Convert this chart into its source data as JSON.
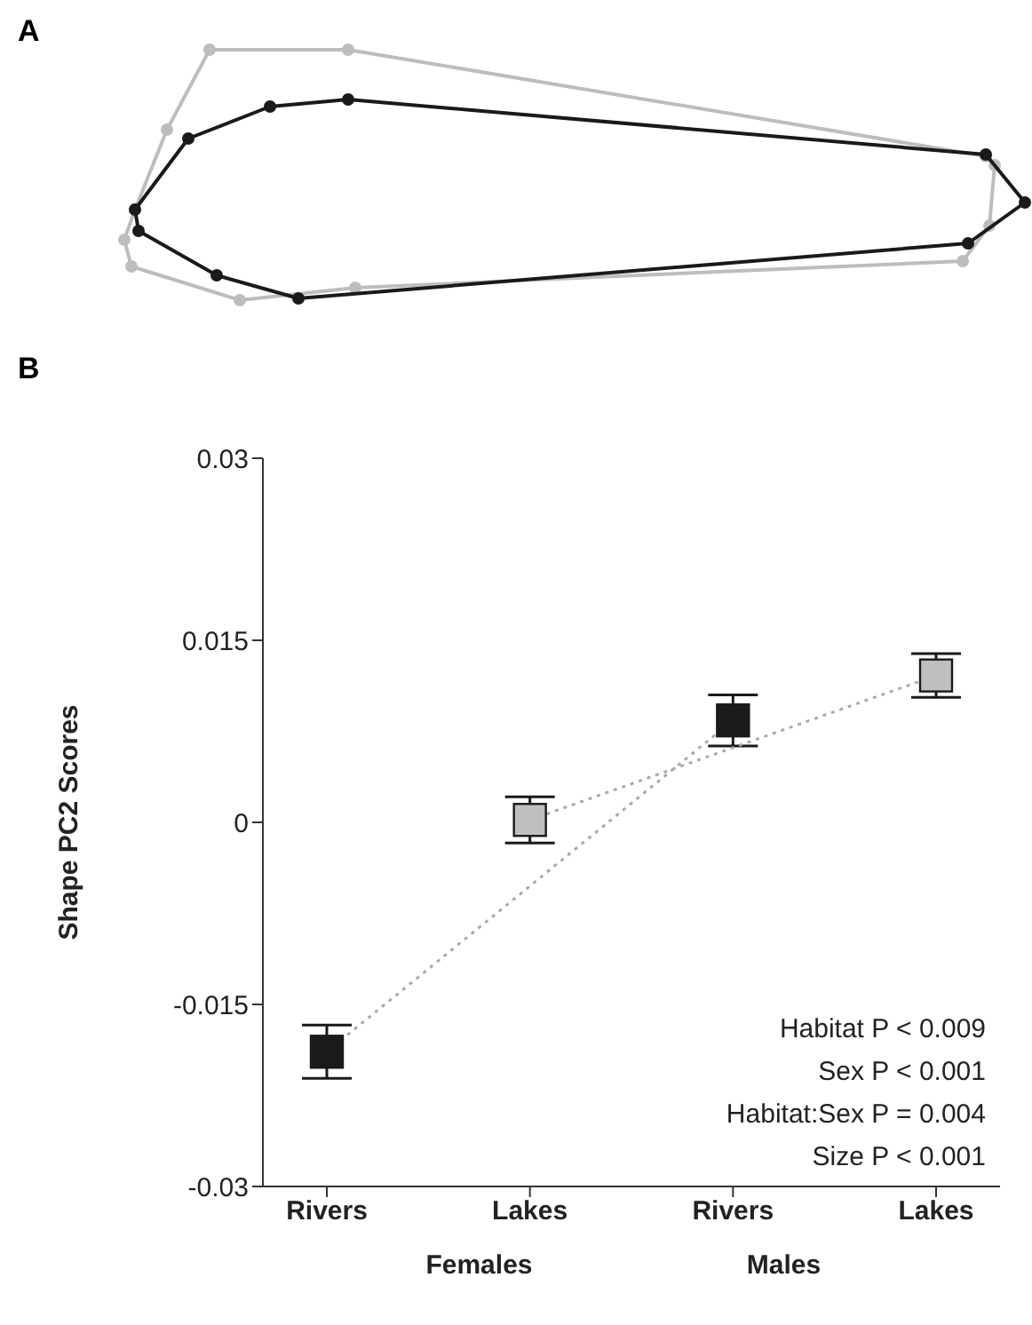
{
  "chart_data": {
    "type": "line",
    "ylabel": "Shape PC2 Scores",
    "categories": [
      "Rivers",
      "Lakes",
      "Rivers",
      "Lakes"
    ],
    "ylim": [
      -0.03,
      0.03
    ],
    "yticks": [
      -0.03,
      -0.015,
      0,
      0.015,
      0.03
    ],
    "marker": "square",
    "line_style": "dotted",
    "grid": false,
    "series": [
      {
        "color": "#1a1a1a",
        "values": [
          -0.0189,
          null,
          0.0084,
          null
        ],
        "errors": [
          0.0022,
          null,
          0.0021,
          null
        ]
      },
      {
        "color": "#bfbfbf",
        "values": [
          null,
          0.0002,
          null,
          0.0121
        ],
        "errors": [
          null,
          0.0019,
          null,
          0.0018
        ]
      }
    ],
    "annotations": [
      "A",
      "B",
      "Habitat P < 0.009",
      "Sex P < 0.001",
      "Habitat:Sex P = 0.004",
      "Size P < 0.001",
      "Females",
      "Males"
    ]
  }
}
